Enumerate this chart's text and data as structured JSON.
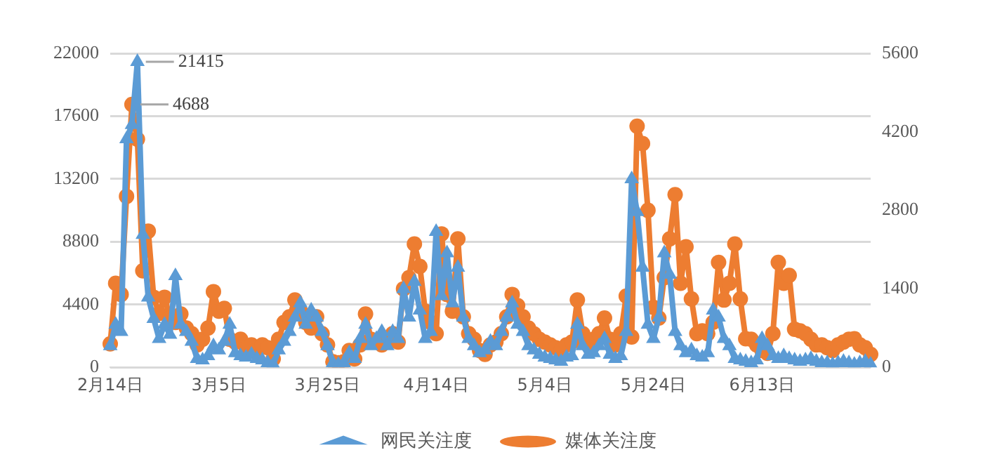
{
  "chart_data": {
    "type": "line",
    "categories": [
      "2月14日",
      null,
      null,
      null,
      null,
      null,
      null,
      null,
      null,
      null,
      null,
      null,
      null,
      null,
      null,
      null,
      null,
      null,
      null,
      null,
      "3月5日",
      null,
      null,
      null,
      null,
      null,
      null,
      null,
      null,
      null,
      null,
      null,
      null,
      null,
      null,
      null,
      null,
      null,
      null,
      null,
      "3月25日",
      null,
      null,
      null,
      null,
      null,
      null,
      null,
      null,
      null,
      null,
      null,
      null,
      null,
      null,
      null,
      null,
      null,
      null,
      null,
      "4月14日",
      null,
      null,
      null,
      null,
      null,
      null,
      null,
      null,
      null,
      null,
      null,
      null,
      null,
      null,
      null,
      null,
      null,
      null,
      null,
      "5月4日",
      null,
      null,
      null,
      null,
      null,
      null,
      null,
      null,
      null,
      null,
      null,
      null,
      null,
      null,
      null,
      null,
      null,
      null,
      null,
      "5月24日",
      null,
      null,
      null,
      null,
      null,
      null,
      null,
      null,
      null,
      null,
      null,
      null,
      null,
      null,
      null,
      null,
      null,
      null,
      null,
      "6月13日",
      null,
      null,
      null,
      null,
      null,
      null,
      null,
      null,
      null,
      null,
      null,
      null,
      null,
      null,
      null,
      null,
      null,
      null,
      null,
      null
    ],
    "series": [
      {
        "name": "网民关注度",
        "color": "#5b9bd5",
        "marker": "triangle",
        "values": [
          1500,
          3000,
          2500,
          16000,
          17000,
          21415,
          9300,
          4900,
          3400,
          2000,
          3000,
          2300,
          6400,
          3000,
          2500,
          1800,
          600,
          500,
          800,
          1500,
          1200,
          1800,
          3000,
          1000,
          800,
          700,
          900,
          600,
          500,
          300,
          200,
          1200,
          1800,
          2500,
          3500,
          4500,
          3000,
          4000,
          3500,
          2500,
          1500,
          300,
          200,
          300,
          1000,
          600,
          2000,
          3000,
          1500,
          2000,
          2500,
          1500,
          2500,
          2000,
          5500,
          3500,
          6000,
          4000,
          2000,
          2500,
          9500,
          5000,
          8000,
          4500,
          7000,
          3500,
          2000,
          1500,
          1000,
          1200,
          1800,
          1500,
          2500,
          3500,
          4500,
          3000,
          2500,
          1500,
          1200,
          900,
          700,
          600,
          500,
          400,
          700,
          800,
          3000,
          1500,
          900,
          1000,
          1500,
          2000,
          900,
          600,
          800,
          2500,
          13200,
          10900,
          7000,
          3000,
          2000,
          3500,
          8000,
          6500,
          2500,
          1500,
          1000,
          1200,
          800,
          700,
          1000,
          4000,
          3500,
          2000,
          1500,
          600,
          500,
          400,
          300,
          500,
          2000,
          1500,
          800,
          600,
          800,
          600,
          500,
          400,
          500,
          600,
          400,
          300,
          300,
          200,
          300,
          400,
          300,
          200,
          300,
          400,
          200
        ],
        "value_labels": [
          null,
          null,
          null,
          null,
          null,
          "21415",
          null,
          null,
          null,
          null,
          null,
          null,
          null,
          null,
          null,
          null,
          null,
          null,
          null,
          null,
          null,
          null,
          null,
          null,
          null,
          null,
          null,
          null,
          null,
          null,
          null,
          null,
          null,
          null,
          null,
          null,
          null,
          null,
          null,
          null,
          null,
          null,
          null,
          null,
          null,
          null,
          null,
          null,
          null,
          null,
          null,
          null,
          null,
          null,
          null,
          null,
          null,
          null,
          null,
          null,
          null,
          null,
          null,
          null,
          null,
          null,
          null,
          null,
          null,
          null,
          null,
          null,
          null,
          null,
          null,
          null,
          null,
          null,
          null,
          null,
          null,
          null,
          null,
          null,
          null,
          null,
          null,
          null,
          null,
          null,
          null,
          null,
          null,
          null,
          null,
          null,
          null,
          null,
          null,
          null,
          null,
          null,
          null,
          null,
          null,
          null,
          null,
          null,
          null,
          null,
          null,
          null,
          null,
          null,
          null,
          null,
          null,
          null,
          null,
          null,
          null,
          null,
          null,
          null,
          null,
          null,
          null,
          null,
          null,
          null,
          null,
          null,
          null,
          null,
          null,
          null,
          null,
          null,
          null,
          null,
          null
        ]
      },
      {
        "name": "媒体关注度",
        "color": "#ed7d31",
        "marker": "circle",
        "axis": "y2",
        "values": [
          420,
          1500,
          1300,
          3050,
          4688,
          4070,
          1720,
          2430,
          1250,
          960,
          1250,
          880,
          800,
          950,
          700,
          600,
          400,
          500,
          700,
          1350,
          1000,
          1050,
          500,
          450,
          500,
          350,
          400,
          300,
          400,
          350,
          150,
          500,
          800,
          900,
          1200,
          1000,
          800,
          700,
          900,
          600,
          400,
          100,
          80,
          100,
          300,
          150,
          400,
          950,
          500,
          450,
          400,
          500,
          600,
          450,
          1400,
          1600,
          2200,
          1800,
          1000,
          800,
          600,
          2380,
          1300,
          1000,
          2290,
          900,
          600,
          500,
          300,
          230,
          400,
          450,
          600,
          900,
          1300,
          1100,
          900,
          700,
          600,
          500,
          450,
          400,
          350,
          300,
          400,
          450,
          1200,
          600,
          400,
          500,
          600,
          880,
          500,
          400,
          600,
          1270,
          540,
          4300,
          3990,
          2800,
          1070,
          880,
          1600,
          2290,
          3080,
          1500,
          2150,
          1220,
          600,
          650,
          600,
          800,
          1870,
          1200,
          1500,
          2200,
          1220,
          510,
          500,
          400,
          300,
          250,
          600,
          1870,
          1500,
          1640,
          680,
          650,
          600,
          500,
          400,
          400,
          350,
          300,
          400,
          450,
          500,
          510,
          400,
          350,
          230
        ],
        "value_labels": [
          null,
          null,
          null,
          null,
          "4688",
          null,
          null,
          null,
          null,
          null,
          null,
          null,
          null,
          null,
          null,
          null,
          null,
          null,
          null,
          null,
          null,
          null,
          null,
          null,
          null,
          null,
          null,
          null,
          null,
          null,
          null,
          null,
          null,
          null,
          null,
          null,
          null,
          null,
          null,
          null,
          null,
          null,
          null,
          null,
          null,
          null,
          null,
          null,
          null,
          null,
          null,
          null,
          null,
          null,
          null,
          null,
          null,
          null,
          null,
          null,
          null,
          null,
          null,
          null,
          null,
          null,
          null,
          null,
          null,
          null,
          null,
          null,
          null,
          null,
          null,
          null,
          null,
          null,
          null,
          null,
          null,
          null,
          null,
          null,
          null,
          null,
          null,
          null,
          null,
          null,
          null,
          null,
          null,
          null,
          null,
          null,
          null,
          null,
          null,
          null,
          null,
          null,
          null,
          null,
          null,
          null,
          null,
          null,
          null,
          null,
          null,
          null,
          null,
          null,
          null,
          null,
          null,
          null,
          null,
          null,
          null,
          null,
          null,
          null,
          null,
          null,
          null,
          null,
          null,
          null,
          null,
          null,
          null,
          null,
          null,
          null,
          null,
          null,
          null,
          null,
          null
        ]
      }
    ],
    "ylim": [
      0,
      22000
    ],
    "yticks": [
      0,
      4400,
      8800,
      13200,
      17600,
      22000
    ],
    "y2lim": [
      0,
      5600
    ],
    "y2ticks": [
      0,
      1400,
      2800,
      4200,
      5600
    ],
    "grid": "y",
    "legend": "bottom",
    "line_style": "solid"
  }
}
